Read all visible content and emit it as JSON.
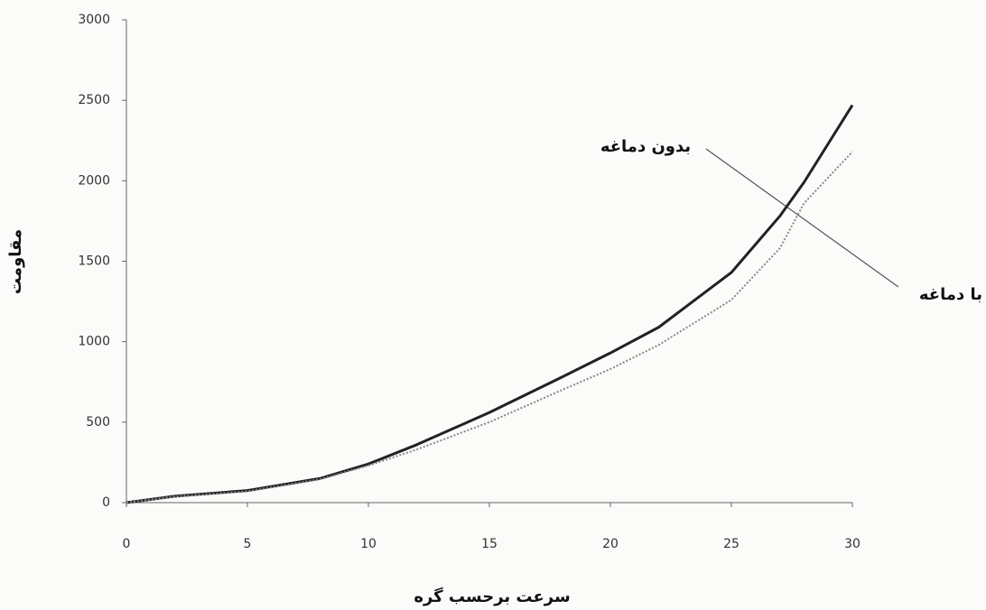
{
  "chart_data": {
    "type": "line",
    "x_label": "سرعت برحسب گره",
    "y_label": "مقاومت",
    "x": [
      0,
      2,
      5,
      8,
      10,
      12,
      15,
      18,
      20,
      22,
      25,
      27,
      28,
      30
    ],
    "series": [
      {
        "name": "بدون دماغه",
        "color": "#222222",
        "style": "solid",
        "values": [
          0,
          40,
          75,
          150,
          240,
          360,
          560,
          780,
          930,
          1090,
          1430,
          1780,
          1990,
          2470
        ]
      },
      {
        "name": "با دماغه",
        "color": "#888888",
        "style": "dotted",
        "values": [
          0,
          38,
          70,
          145,
          230,
          330,
          500,
          700,
          830,
          980,
          1260,
          1580,
          1860,
          2180
        ]
      }
    ],
    "xlim": [
      0,
      30
    ],
    "xticks": [
      0,
      5,
      10,
      15,
      20,
      25,
      30
    ],
    "ylim": [
      0,
      3000
    ],
    "yticks": [
      0,
      500,
      1000,
      1500,
      2000,
      2500,
      3000
    ]
  }
}
